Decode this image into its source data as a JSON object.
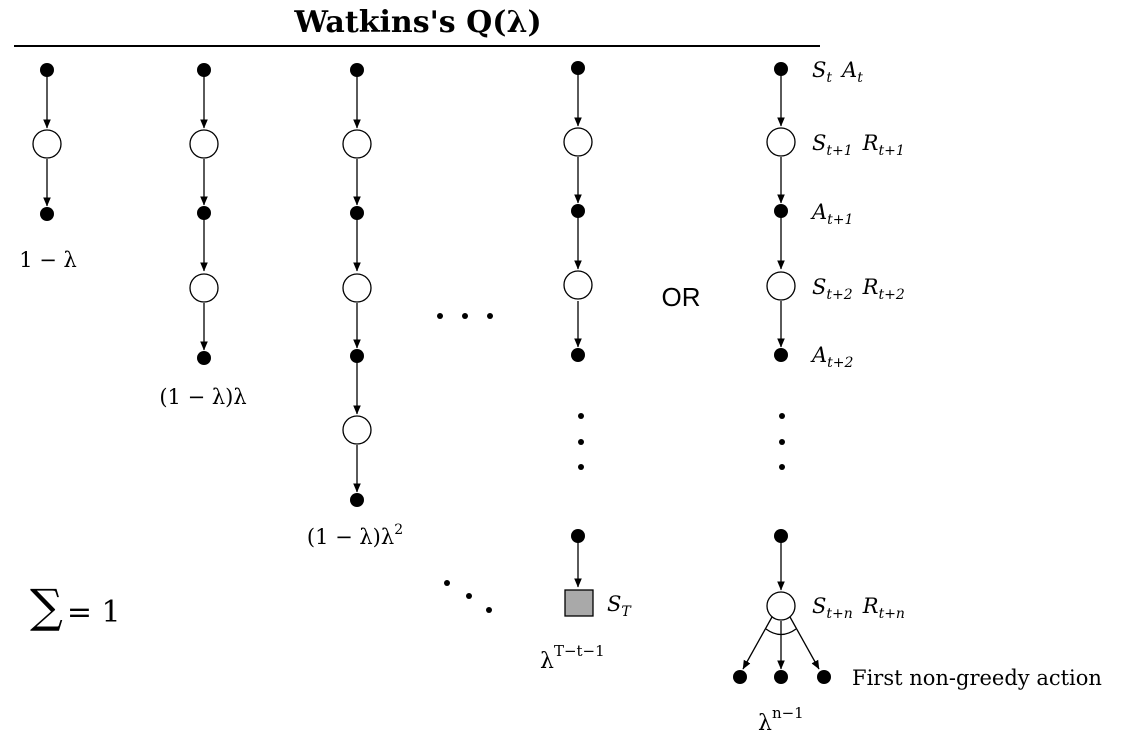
{
  "title": "Watkins's Q(λ)",
  "or_label": "OR",
  "sum_label": {
    "sym": "∑",
    "rest": "= 1"
  },
  "weights": {
    "w1": "1 − λ",
    "w2": "(1 − λ)λ",
    "w3": {
      "base": "(1 − λ)λ",
      "sup": "2"
    },
    "w4": {
      "base": "λ",
      "sup": "T−t−1"
    },
    "w5": {
      "base": "λ",
      "sup": "n−1"
    }
  },
  "state_labels": {
    "st_at": {
      "s": "S",
      "s_sub": "t",
      "a": "A",
      "a_sub": "t"
    },
    "st1_rt1": {
      "s": "S",
      "s_sub": "t+1",
      "r": "R",
      "r_sub": "t+1"
    },
    "at1": {
      "a": "A",
      "a_sub": "t+1"
    },
    "st2_rt2": {
      "s": "S",
      "s_sub": "t+2",
      "r": "R",
      "r_sub": "t+2"
    },
    "at2": {
      "a": "A",
      "a_sub": "t+2"
    },
    "stn_rtn": {
      "s": "S",
      "s_sub": "t+n",
      "r": "R",
      "r_sub": "t+n"
    },
    "s_terminal": {
      "s": "S",
      "s_sub": "T"
    }
  },
  "first_nongreedy_label": "First non-greedy action",
  "colors": {
    "line": "#000000",
    "terminal_fill": "#a9a9a9",
    "background": "#ffffff"
  }
}
